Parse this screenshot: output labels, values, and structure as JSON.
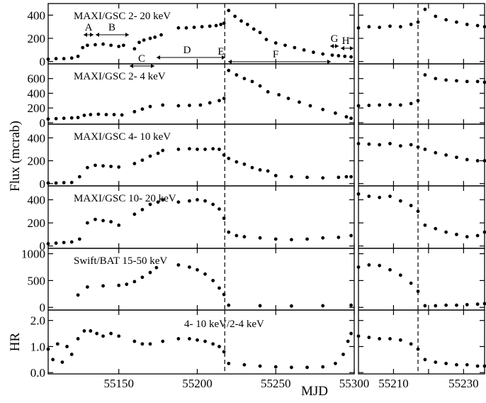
{
  "chart_data": {
    "type": "scatter",
    "ylabel": "Flux (mcrab)",
    "xlabel": "MJD",
    "grid": false,
    "xlim_left": [
      55105,
      55300
    ],
    "xlim_right": [
      55200,
      55236
    ],
    "xticks_left": [
      55150,
      55200,
      55250,
      55300
    ],
    "xticks_right": [
      55210,
      55220,
      55230
    ],
    "xticklabels_right": [
      "55210",
      "55230"
    ],
    "vline_left": 55217.5,
    "vline_right": 55217.0,
    "region_labels": [
      "A",
      "B",
      "C",
      "D",
      "E",
      "F",
      "G",
      "H"
    ],
    "panels": [
      {
        "label": "MAXI/GSC 2- 20 keV",
        "ylim": [
          -20,
          500
        ],
        "yticks": [
          0,
          200,
          400
        ],
        "left": {
          "x": [
            55105,
            55110,
            55115,
            55120,
            55124,
            55127,
            55130,
            55135,
            55140,
            55145,
            55150,
            55153,
            55160,
            55163,
            55166,
            55170,
            55173,
            55177,
            55188,
            55193,
            55198,
            55203,
            55208,
            55212,
            55215,
            55217,
            55220,
            55224,
            55228,
            55232,
            55236,
            55240,
            55244,
            55250,
            55256,
            55262,
            55268,
            55274,
            55280,
            55286,
            55290,
            55294,
            55298
          ],
          "y": [
            20,
            25,
            25,
            30,
            45,
            120,
            140,
            145,
            150,
            140,
            130,
            140,
            110,
            165,
            185,
            200,
            210,
            230,
            290,
            290,
            295,
            300,
            305,
            310,
            320,
            330,
            440,
            390,
            350,
            320,
            280,
            250,
            190,
            160,
            140,
            120,
            100,
            80,
            65,
            55,
            50,
            45,
            40
          ]
        },
        "right": {
          "x": [
            55200,
            55203,
            55206,
            55209,
            55212,
            55215,
            55217,
            55219,
            55222,
            55225,
            55228,
            55231,
            55234,
            55236
          ],
          "y": [
            290,
            300,
            295,
            305,
            300,
            320,
            340,
            450,
            390,
            360,
            340,
            320,
            310,
            300
          ]
        }
      },
      {
        "label": "MAXI/GSC 2- 4 keV",
        "ylim": [
          -20,
          800
        ],
        "yticks": [
          0,
          200,
          400,
          600
        ],
        "left": {
          "x": [
            55105,
            55110,
            55115,
            55120,
            55124,
            55128,
            55132,
            55137,
            55142,
            55147,
            55152,
            55160,
            55165,
            55170,
            55178,
            55188,
            55195,
            55202,
            55208,
            55214,
            55217,
            55220,
            55225,
            55230,
            55235,
            55240,
            55245,
            55252,
            55258,
            55265,
            55272,
            55280,
            55288,
            55295,
            55298
          ],
          "y": [
            50,
            55,
            60,
            65,
            70,
            100,
            110,
            115,
            110,
            110,
            105,
            150,
            185,
            220,
            240,
            230,
            235,
            240,
            270,
            300,
            330,
            710,
            650,
            600,
            560,
            500,
            420,
            380,
            330,
            280,
            230,
            180,
            130,
            80,
            60
          ]
        },
        "right": {
          "x": [
            55200,
            55203,
            55206,
            55209,
            55212,
            55215,
            55217,
            55219,
            55222,
            55225,
            55228,
            55231,
            55234,
            55236
          ],
          "y": [
            230,
            235,
            240,
            245,
            240,
            260,
            300,
            650,
            600,
            580,
            570,
            560,
            560,
            550
          ]
        }
      },
      {
        "label": "MAXI/GSC 4- 10 keV",
        "ylim": [
          -20,
          520
        ],
        "yticks": [
          0,
          200,
          400
        ],
        "left": {
          "x": [
            55105,
            55110,
            55115,
            55120,
            55125,
            55130,
            55135,
            55140,
            55145,
            55150,
            55160,
            55165,
            55170,
            55175,
            55178,
            55188,
            55195,
            55200,
            55205,
            55210,
            55214,
            55217,
            55220,
            55225,
            55230,
            55235,
            55240,
            55245,
            55250,
            55260,
            55270,
            55280,
            55290,
            55295,
            55298
          ],
          "y": [
            5,
            5,
            8,
            10,
            60,
            140,
            160,
            155,
            150,
            145,
            175,
            205,
            240,
            265,
            290,
            300,
            305,
            300,
            300,
            305,
            300,
            250,
            220,
            190,
            170,
            140,
            120,
            110,
            70,
            60,
            55,
            50,
            55,
            60,
            60
          ]
        },
        "right": {
          "x": [
            55200,
            55203,
            55206,
            55209,
            55212,
            55215,
            55217,
            55219,
            55222,
            55225,
            55228,
            55231,
            55234,
            55236
          ],
          "y": [
            350,
            345,
            340,
            350,
            330,
            340,
            320,
            300,
            270,
            250,
            230,
            210,
            200,
            200
          ]
        }
      },
      {
        "label": "MAXI/GSC 10- 20 keV",
        "ylim": [
          -20,
          520
        ],
        "yticks": [
          0,
          200,
          400
        ],
        "left": {
          "x": [
            55105,
            55110,
            55115,
            55120,
            55125,
            55130,
            55135,
            55140,
            55145,
            55150,
            55160,
            55165,
            55170,
            55175,
            55178,
            55188,
            55195,
            55200,
            55205,
            55210,
            55214,
            55217,
            55220,
            55225,
            55230,
            55240,
            55250,
            55260,
            55270,
            55280,
            55290,
            55298
          ],
          "y": [
            20,
            25,
            30,
            35,
            60,
            200,
            230,
            220,
            210,
            180,
            275,
            315,
            360,
            380,
            400,
            380,
            390,
            400,
            390,
            360,
            320,
            240,
            120,
            90,
            80,
            70,
            60,
            55,
            60,
            70,
            75,
            90
          ]
        },
        "right": {
          "x": [
            55200,
            55203,
            55206,
            55209,
            55212,
            55215,
            55217,
            55219,
            55222,
            55225,
            55228,
            55231,
            55234,
            55236
          ],
          "y": [
            450,
            430,
            420,
            430,
            390,
            350,
            300,
            180,
            150,
            120,
            100,
            80,
            90,
            120
          ]
        }
      },
      {
        "label": "Swift/BAT 15-50 keV",
        "ylim": [
          -50,
          1100
        ],
        "yticks": [
          0,
          500,
          1000
        ],
        "left": {
          "x": [
            55124,
            55130,
            55140,
            55150,
            55155,
            55160,
            55165,
            55170,
            55174,
            55188,
            55195,
            55200,
            55205,
            55210,
            55214,
            55217,
            55220,
            55240,
            55260,
            55280,
            55298
          ],
          "y": [
            230,
            380,
            400,
            410,
            430,
            480,
            560,
            650,
            740,
            790,
            750,
            700,
            620,
            500,
            360,
            240,
            40,
            30,
            25,
            30,
            40
          ]
        },
        "right": {
          "x": [
            55200,
            55203,
            55206,
            55209,
            55212,
            55215,
            55217,
            55219,
            55222,
            55225,
            55228,
            55231,
            55234,
            55236
          ],
          "y": [
            750,
            790,
            780,
            700,
            600,
            450,
            300,
            30,
            30,
            40,
            40,
            50,
            60,
            70
          ]
        }
      },
      {
        "label": "4- 10 keV/2-4 keV",
        "ylabel": "HR",
        "ylim": [
          -0.05,
          2.4
        ],
        "yticks": [
          0.0,
          1.0,
          2.0
        ],
        "yticklabels": [
          "0.0",
          "1.0",
          "2.0"
        ],
        "left": {
          "x": [
            55105,
            55108,
            55111,
            55114,
            55117,
            55120,
            55124,
            55128,
            55132,
            55136,
            55140,
            55145,
            55150,
            55160,
            55165,
            55170,
            55178,
            55188,
            55195,
            55200,
            55205,
            55210,
            55214,
            55217,
            55220,
            55230,
            55240,
            55250,
            55260,
            55270,
            55280,
            55288,
            55293,
            55296,
            55298
          ],
          "y": [
            0.9,
            0.5,
            1.1,
            0.4,
            1.0,
            0.7,
            1.3,
            1.6,
            1.6,
            1.5,
            1.4,
            1.5,
            1.4,
            1.2,
            1.1,
            1.1,
            1.2,
            1.3,
            1.3,
            1.25,
            1.2,
            1.1,
            1.0,
            0.8,
            0.35,
            0.3,
            0.25,
            0.22,
            0.2,
            0.2,
            0.22,
            0.35,
            0.7,
            1.2,
            1.5
          ]
        },
        "right": {
          "x": [
            55200,
            55203,
            55206,
            55209,
            55212,
            55215,
            55217,
            55219,
            55222,
            55225,
            55228,
            55231,
            55234,
            55236
          ],
          "y": [
            1.4,
            1.35,
            1.3,
            1.3,
            1.25,
            1.1,
            0.9,
            0.5,
            0.4,
            0.35,
            0.3,
            0.3,
            0.25,
            0.25
          ]
        }
      }
    ]
  }
}
